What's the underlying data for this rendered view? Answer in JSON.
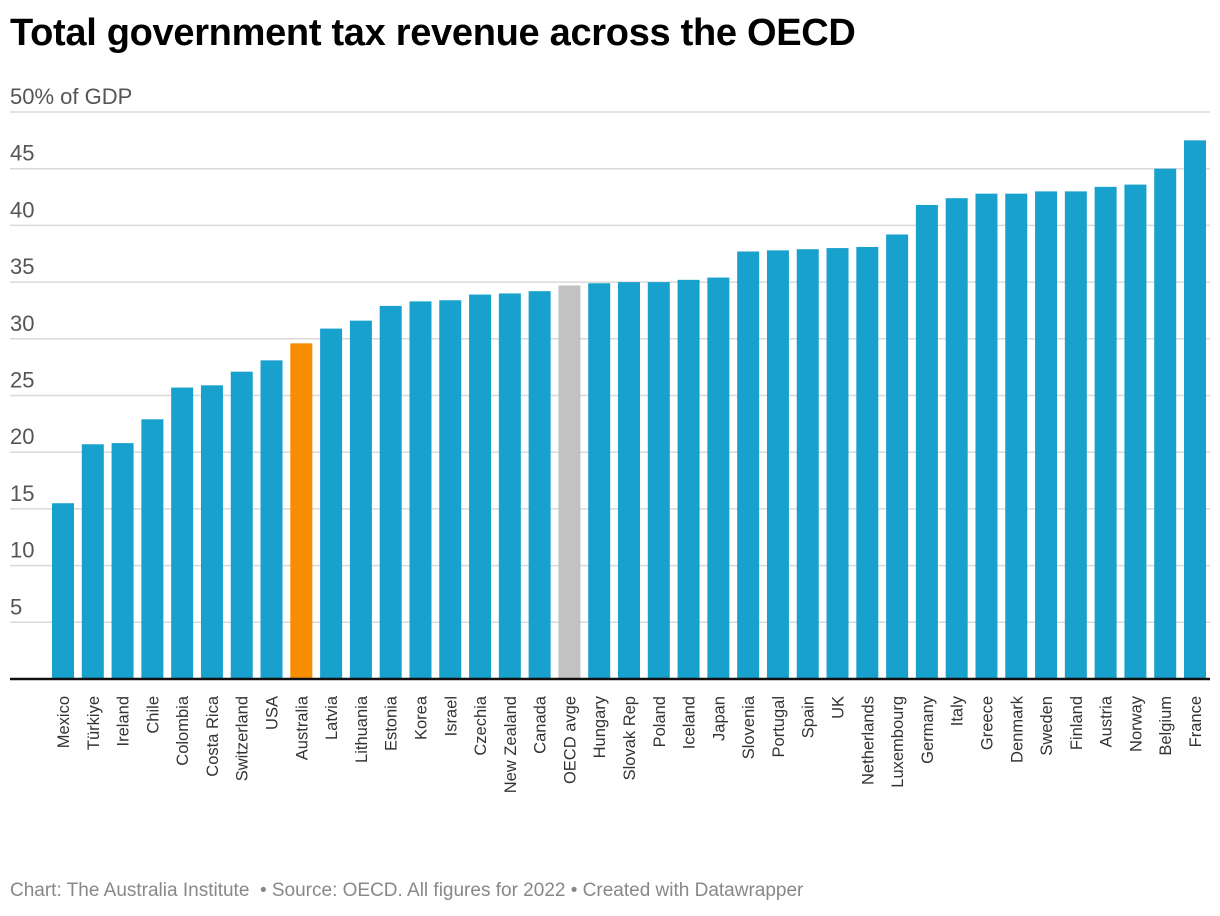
{
  "chart_data": {
    "type": "bar",
    "title": "Total government tax revenue across the OECD",
    "xlabel": "",
    "ylabel": "% of GDP",
    "ylim": [
      0,
      50
    ],
    "yticks": [
      5,
      10,
      15,
      20,
      25,
      30,
      35,
      40,
      45,
      50
    ],
    "ytick_labels": [
      "5",
      "10",
      "15",
      "20",
      "25",
      "30",
      "35",
      "40",
      "45",
      "50% of GDP"
    ],
    "grid": true,
    "categories": [
      "Mexico",
      "Türkiye",
      "Ireland",
      "Chile",
      "Colombia",
      "Costa Rica",
      "Switzerland",
      "USA",
      "Australia",
      "Latvia",
      "Lithuania",
      "Estonia",
      "Korea",
      "Israel",
      "Czechia",
      "New Zealand",
      "Canada",
      "OECD avge",
      "Hungary",
      "Slovak Rep",
      "Poland",
      "Iceland",
      "Japan",
      "Slovenia",
      "Portugal",
      "Spain",
      "UK",
      "Netherlands",
      "Luxembourg",
      "Germany",
      "Italy",
      "Greece",
      "Denmark",
      "Sweden",
      "Finland",
      "Austria",
      "Norway",
      "Belgium",
      "France"
    ],
    "values": [
      15.5,
      20.7,
      20.8,
      22.9,
      25.7,
      25.9,
      27.1,
      28.1,
      29.6,
      30.9,
      31.6,
      32.9,
      33.3,
      33.4,
      33.9,
      34.0,
      34.2,
      34.7,
      34.9,
      35.0,
      35.0,
      35.2,
      35.4,
      37.7,
      37.8,
      37.9,
      38.0,
      38.1,
      39.2,
      41.8,
      42.4,
      42.8,
      42.8,
      43.0,
      43.0,
      43.4,
      43.6,
      45.0,
      47.5
    ],
    "highlights": {
      "Australia": "#f78d00",
      "OECD avge": "#c2c2c2"
    },
    "default_color": "#18a1cd",
    "footer": "Chart: The Australia Institute  • Source: OECD. All figures for 2022 • Created with Datawrapper"
  }
}
